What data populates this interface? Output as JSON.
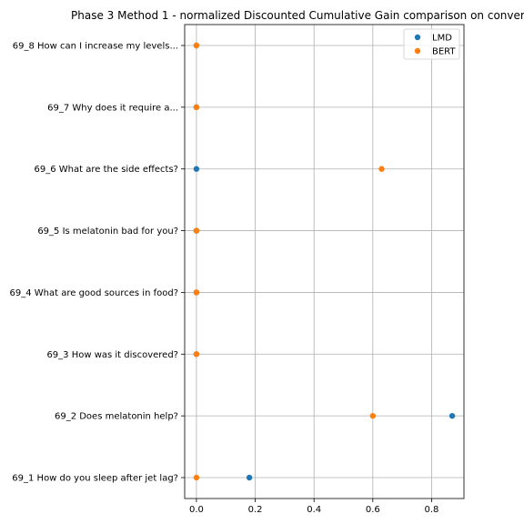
{
  "chart_data": {
    "type": "scatter",
    "title": "Phase 3 Method 1 - normalized Discounted Cumulative Gain comparison on conver",
    "xlabel": "",
    "ylabel": "",
    "xlim": [
      -0.04,
      0.91
    ],
    "x_ticks": [
      0.0,
      0.2,
      0.4,
      0.6,
      0.8
    ],
    "x_tick_labels": [
      "0.0",
      "0.2",
      "0.4",
      "0.6",
      "0.8"
    ],
    "categories": [
      "69_1 How do you sleep after jet lag?",
      "69_2 Does melatonin help?",
      "69_3 How was it discovered?",
      "69_4 What are good sources in food?",
      "69_5 Is melatonin bad for you?",
      "69_6 What are the side effects?",
      "69_7 Why does it require a...",
      "69_8 How can I increase my levels..."
    ],
    "series": [
      {
        "name": "LMD",
        "color": "#1f77b4",
        "values": [
          0.18,
          0.87,
          0.0,
          0.0,
          0.0,
          0.0,
          0.0,
          0.0
        ]
      },
      {
        "name": "BERT",
        "color": "#ff7f0e",
        "values": [
          0.0,
          0.6,
          0.0,
          0.0,
          0.0,
          0.63,
          0.0,
          0.0
        ]
      }
    ],
    "grid": true,
    "legend_position": "top-right"
  }
}
